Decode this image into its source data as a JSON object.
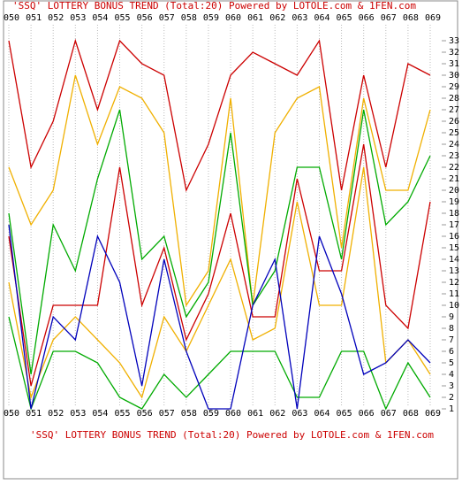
{
  "chart_data": {
    "type": "line",
    "title": "'SSQ' LOTTERY BONUS TREND (Total:20)  Powered by LOTOLE.com & 1FEN.com",
    "categories": [
      "050",
      "051",
      "052",
      "053",
      "054",
      "055",
      "056",
      "057",
      "058",
      "059",
      "060",
      "061",
      "062",
      "063",
      "064",
      "065",
      "066",
      "067",
      "068",
      "069"
    ],
    "series": [
      {
        "color": "#cc0000",
        "values": [
          33,
          22,
          26,
          33,
          27,
          33,
          31,
          30,
          20,
          24,
          30,
          32,
          31,
          30,
          33,
          20,
          30,
          22,
          31,
          30
        ]
      },
      {
        "color": "#f0b000",
        "values": [
          22,
          17,
          20,
          30,
          24,
          29,
          28,
          25,
          10,
          13,
          28,
          10,
          25,
          28,
          29,
          15,
          28,
          20,
          20,
          27
        ]
      },
      {
        "color": "#00aa00",
        "values": [
          18,
          4,
          17,
          13,
          21,
          27,
          14,
          16,
          9,
          12,
          25,
          10,
          13,
          22,
          22,
          14,
          27,
          17,
          19,
          23
        ]
      },
      {
        "color": "#cc0000",
        "values": [
          16,
          3,
          10,
          10,
          10,
          22,
          10,
          15,
          7,
          11,
          18,
          9,
          9,
          21,
          13,
          13,
          24,
          10,
          8,
          19
        ]
      },
      {
        "color": "#f0b000",
        "values": [
          12,
          2,
          7,
          9,
          7,
          5,
          2,
          9,
          6,
          10,
          14,
          7,
          8,
          19,
          10,
          10,
          22,
          5,
          7,
          4
        ]
      },
      {
        "color": "#00aa00",
        "values": [
          9,
          1,
          6,
          6,
          5,
          2,
          1,
          4,
          2,
          4,
          6,
          6,
          6,
          2,
          2,
          6,
          6,
          1,
          5,
          2
        ]
      },
      {
        "color": "#0000bb",
        "values": [
          17,
          1,
          9,
          7,
          16,
          12,
          3,
          14,
          6,
          1,
          1,
          10,
          14,
          1,
          16,
          11,
          4,
          5,
          7,
          5
        ]
      }
    ],
    "ylim": [
      0.5,
      33.5
    ],
    "yticks": [
      1,
      2,
      3,
      4,
      5,
      6,
      7,
      8,
      9,
      10,
      11,
      12,
      13,
      14,
      15,
      16,
      17,
      18,
      19,
      20,
      21,
      22,
      23,
      24,
      25,
      26,
      27,
      28,
      29,
      30,
      31,
      32,
      33
    ]
  }
}
